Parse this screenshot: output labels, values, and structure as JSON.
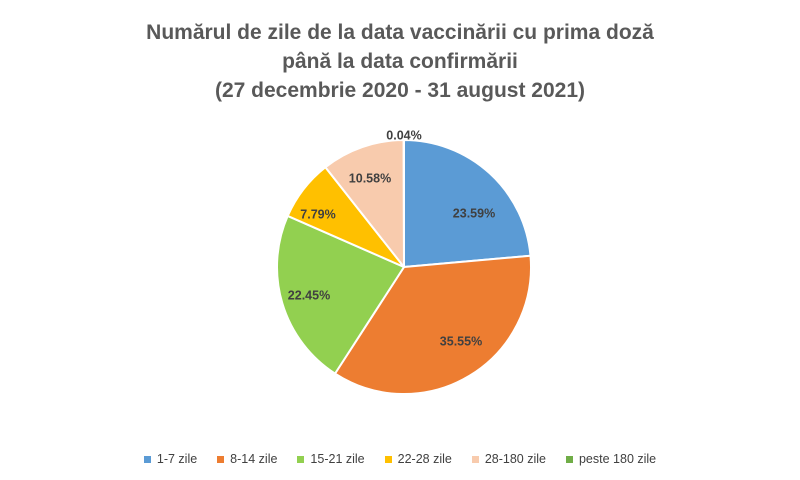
{
  "chart_data": {
    "type": "pie",
    "title_lines": [
      "Numărul de zile de la data vaccinării cu prima doză",
      "până la data confirmării",
      "(27 decembrie 2020 - 31 august 2021)"
    ],
    "categories": [
      "1-7 zile",
      "8-14 zile",
      "15-21 zile",
      "22-28 zile",
      "28-180 zile",
      "peste 180 zile"
    ],
    "values": [
      23.59,
      35.55,
      22.45,
      7.79,
      10.58,
      0.04
    ],
    "data_labels": [
      "23.59%",
      "35.55%",
      "22.45%",
      "7.79%",
      "10.58%",
      "0.04%"
    ],
    "colors": [
      "#5B9BD5",
      "#ED7D31",
      "#92D050",
      "#FFC000",
      "#F8CBAD",
      "#70AD47"
    ],
    "legend_position": "bottom",
    "start_angle": "12 o'clock",
    "direction": "clockwise"
  }
}
